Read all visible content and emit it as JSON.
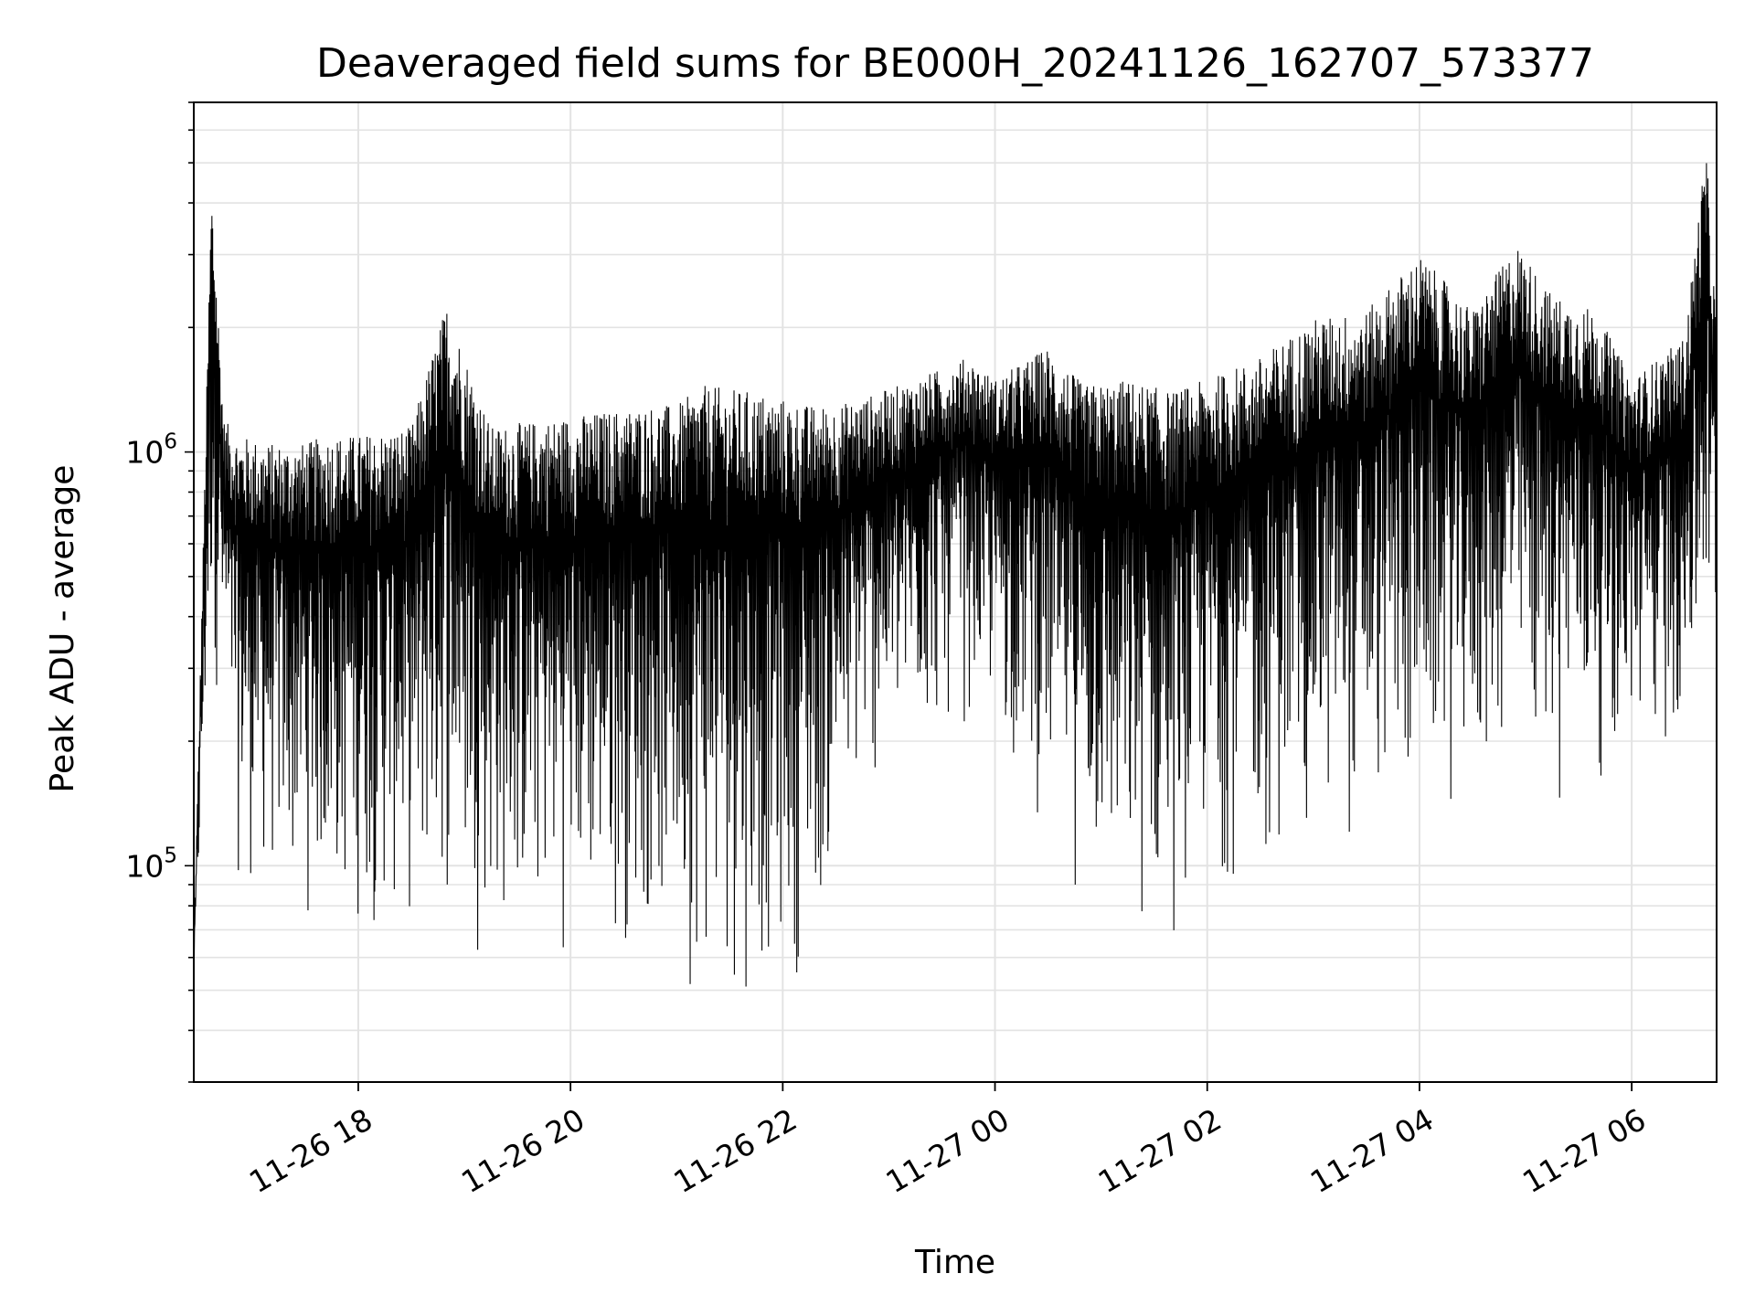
{
  "chart_data": {
    "type": "line",
    "title": "Deaveraged field sums for BE000H_20241126_162707_573377",
    "xlabel": "Time",
    "ylabel": "Peak ADU - average",
    "yscale": "log",
    "ylim": [
      30000,
      7000000
    ],
    "xlim": [
      "2024-11-26 16:27",
      "2024-11-27 06:48"
    ],
    "x_ticks": [
      {
        "t": "2024-11-26 18:00",
        "label": "11-26 18"
      },
      {
        "t": "2024-11-26 20:00",
        "label": "11-26 20"
      },
      {
        "t": "2024-11-26 22:00",
        "label": "11-26 22"
      },
      {
        "t": "2024-11-27 00:00",
        "label": "11-27 00"
      },
      {
        "t": "2024-11-27 02:00",
        "label": "11-27 02"
      },
      {
        "t": "2024-11-27 04:00",
        "label": "11-27 04"
      },
      {
        "t": "2024-11-27 06:00",
        "label": "11-27 06"
      }
    ],
    "y_ticks": [
      {
        "value": 100000,
        "base": "10",
        "exp": "5"
      },
      {
        "value": 1000000,
        "base": "10",
        "exp": "6"
      }
    ],
    "grid": true,
    "line_color": "#000000",
    "series": [
      {
        "x": [
          "2024-11-26 16:27",
          "2024-11-26 16:37",
          "2024-11-26 16:44",
          "2024-11-26 16:52",
          "2024-11-26 17:10",
          "2024-11-26 17:30",
          "2024-11-26 17:42",
          "2024-11-26 18:00",
          "2024-11-26 18:30",
          "2024-11-26 18:50",
          "2024-11-26 19:15",
          "2024-11-26 19:45",
          "2024-11-26 20:15",
          "2024-11-26 20:45",
          "2024-11-26 21:00",
          "2024-11-26 21:15",
          "2024-11-26 21:45",
          "2024-11-26 22:15",
          "2024-11-26 22:30",
          "2024-11-26 22:45",
          "2024-11-26 23:15",
          "2024-11-26 23:45",
          "2024-11-27 00:00",
          "2024-11-27 00:30",
          "2024-11-27 00:50",
          "2024-11-27 01:15",
          "2024-11-27 01:40",
          "2024-11-27 02:00",
          "2024-11-27 02:30",
          "2024-11-27 03:00",
          "2024-11-27 03:30",
          "2024-11-27 04:00",
          "2024-11-27 04:30",
          "2024-11-27 04:55",
          "2024-11-27 05:15",
          "2024-11-27 05:40",
          "2024-11-27 06:00",
          "2024-11-27 06:30",
          "2024-11-27 06:42",
          "2024-11-27 06:48"
        ],
        "hi": [
          60000,
          4500000,
          1200000,
          1100000,
          1050000,
          1050000,
          1100000,
          1100000,
          1150000,
          2300000,
          1150000,
          1200000,
          1250000,
          1300000,
          1300000,
          1450000,
          1400000,
          1300000,
          1300000,
          1350000,
          1500000,
          1700000,
          1500000,
          1800000,
          1450000,
          1500000,
          1400000,
          1500000,
          1700000,
          2100000,
          2200000,
          3000000,
          2200000,
          3200000,
          2400000,
          2200000,
          1500000,
          1900000,
          5500000,
          2000000
        ],
        "lo": [
          50000,
          250000,
          200000,
          80000,
          70000,
          65000,
          62000,
          60000,
          58000,
          62000,
          55000,
          55000,
          55000,
          55000,
          50000,
          40000,
          42000,
          50000,
          80000,
          120000,
          160000,
          200000,
          180000,
          100000,
          70000,
          50000,
          55000,
          80000,
          80000,
          90000,
          100000,
          110000,
          120000,
          140000,
          130000,
          140000,
          150000,
          160000,
          200000,
          220000
        ]
      }
    ]
  }
}
